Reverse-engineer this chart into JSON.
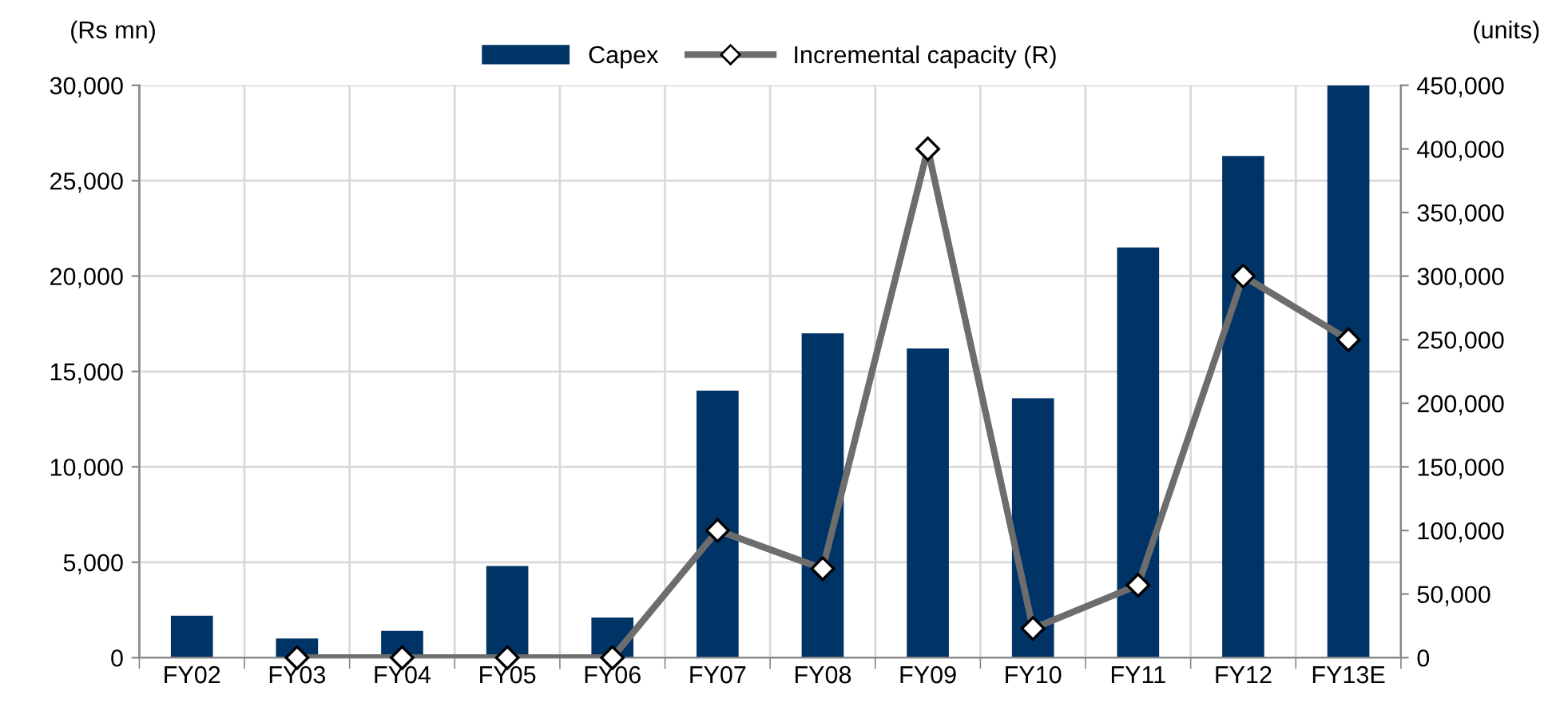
{
  "chart_data": {
    "type": "bar",
    "ylabel": "(Rs mn)",
    "y2label": "(units)",
    "categories": [
      "FY02",
      "FY03",
      "FY04",
      "FY05",
      "FY06",
      "FY07",
      "FY08",
      "FY09",
      "FY10",
      "FY11",
      "FY12",
      "FY13E"
    ],
    "series": [
      {
        "name": "Capex",
        "color": "#003366",
        "values": [
          2200,
          1000,
          1400,
          4800,
          2100,
          14000,
          17000,
          16200,
          13600,
          21500,
          26300,
          30000
        ]
      },
      {
        "name": "Incremental capacity (R)",
        "type": "line",
        "axis": "y2",
        "color": "#6d6d6d",
        "marker": "diamond",
        "values": [
          null,
          0,
          0,
          0,
          0,
          100000,
          70000,
          400000,
          23000,
          57000,
          300000,
          250000
        ]
      }
    ],
    "ylim": [
      0,
      30000
    ],
    "yticks": [
      {
        "value": 0,
        "label": "0"
      },
      {
        "value": 5000,
        "label": "5,000"
      },
      {
        "value": 10000,
        "label": "10,000"
      },
      {
        "value": 15000,
        "label": "15,000"
      },
      {
        "value": 20000,
        "label": "20,000"
      },
      {
        "value": 25000,
        "label": "25,000"
      },
      {
        "value": 30000,
        "label": "30,000"
      }
    ],
    "y2lim": [
      0,
      450000
    ],
    "y2ticks": [
      {
        "value": 0,
        "label": "0"
      },
      {
        "value": 50000,
        "label": "50,000"
      },
      {
        "value": 100000,
        "label": "100,000"
      },
      {
        "value": 150000,
        "label": "150,000"
      },
      {
        "value": 200000,
        "label": "200,000"
      },
      {
        "value": 250000,
        "label": "250,000"
      },
      {
        "value": 300000,
        "label": "300,000"
      },
      {
        "value": 350000,
        "label": "350,000"
      },
      {
        "value": 400000,
        "label": "400,000"
      },
      {
        "value": 450000,
        "label": "450,000"
      }
    ],
    "grid": true,
    "legend": "top"
  }
}
